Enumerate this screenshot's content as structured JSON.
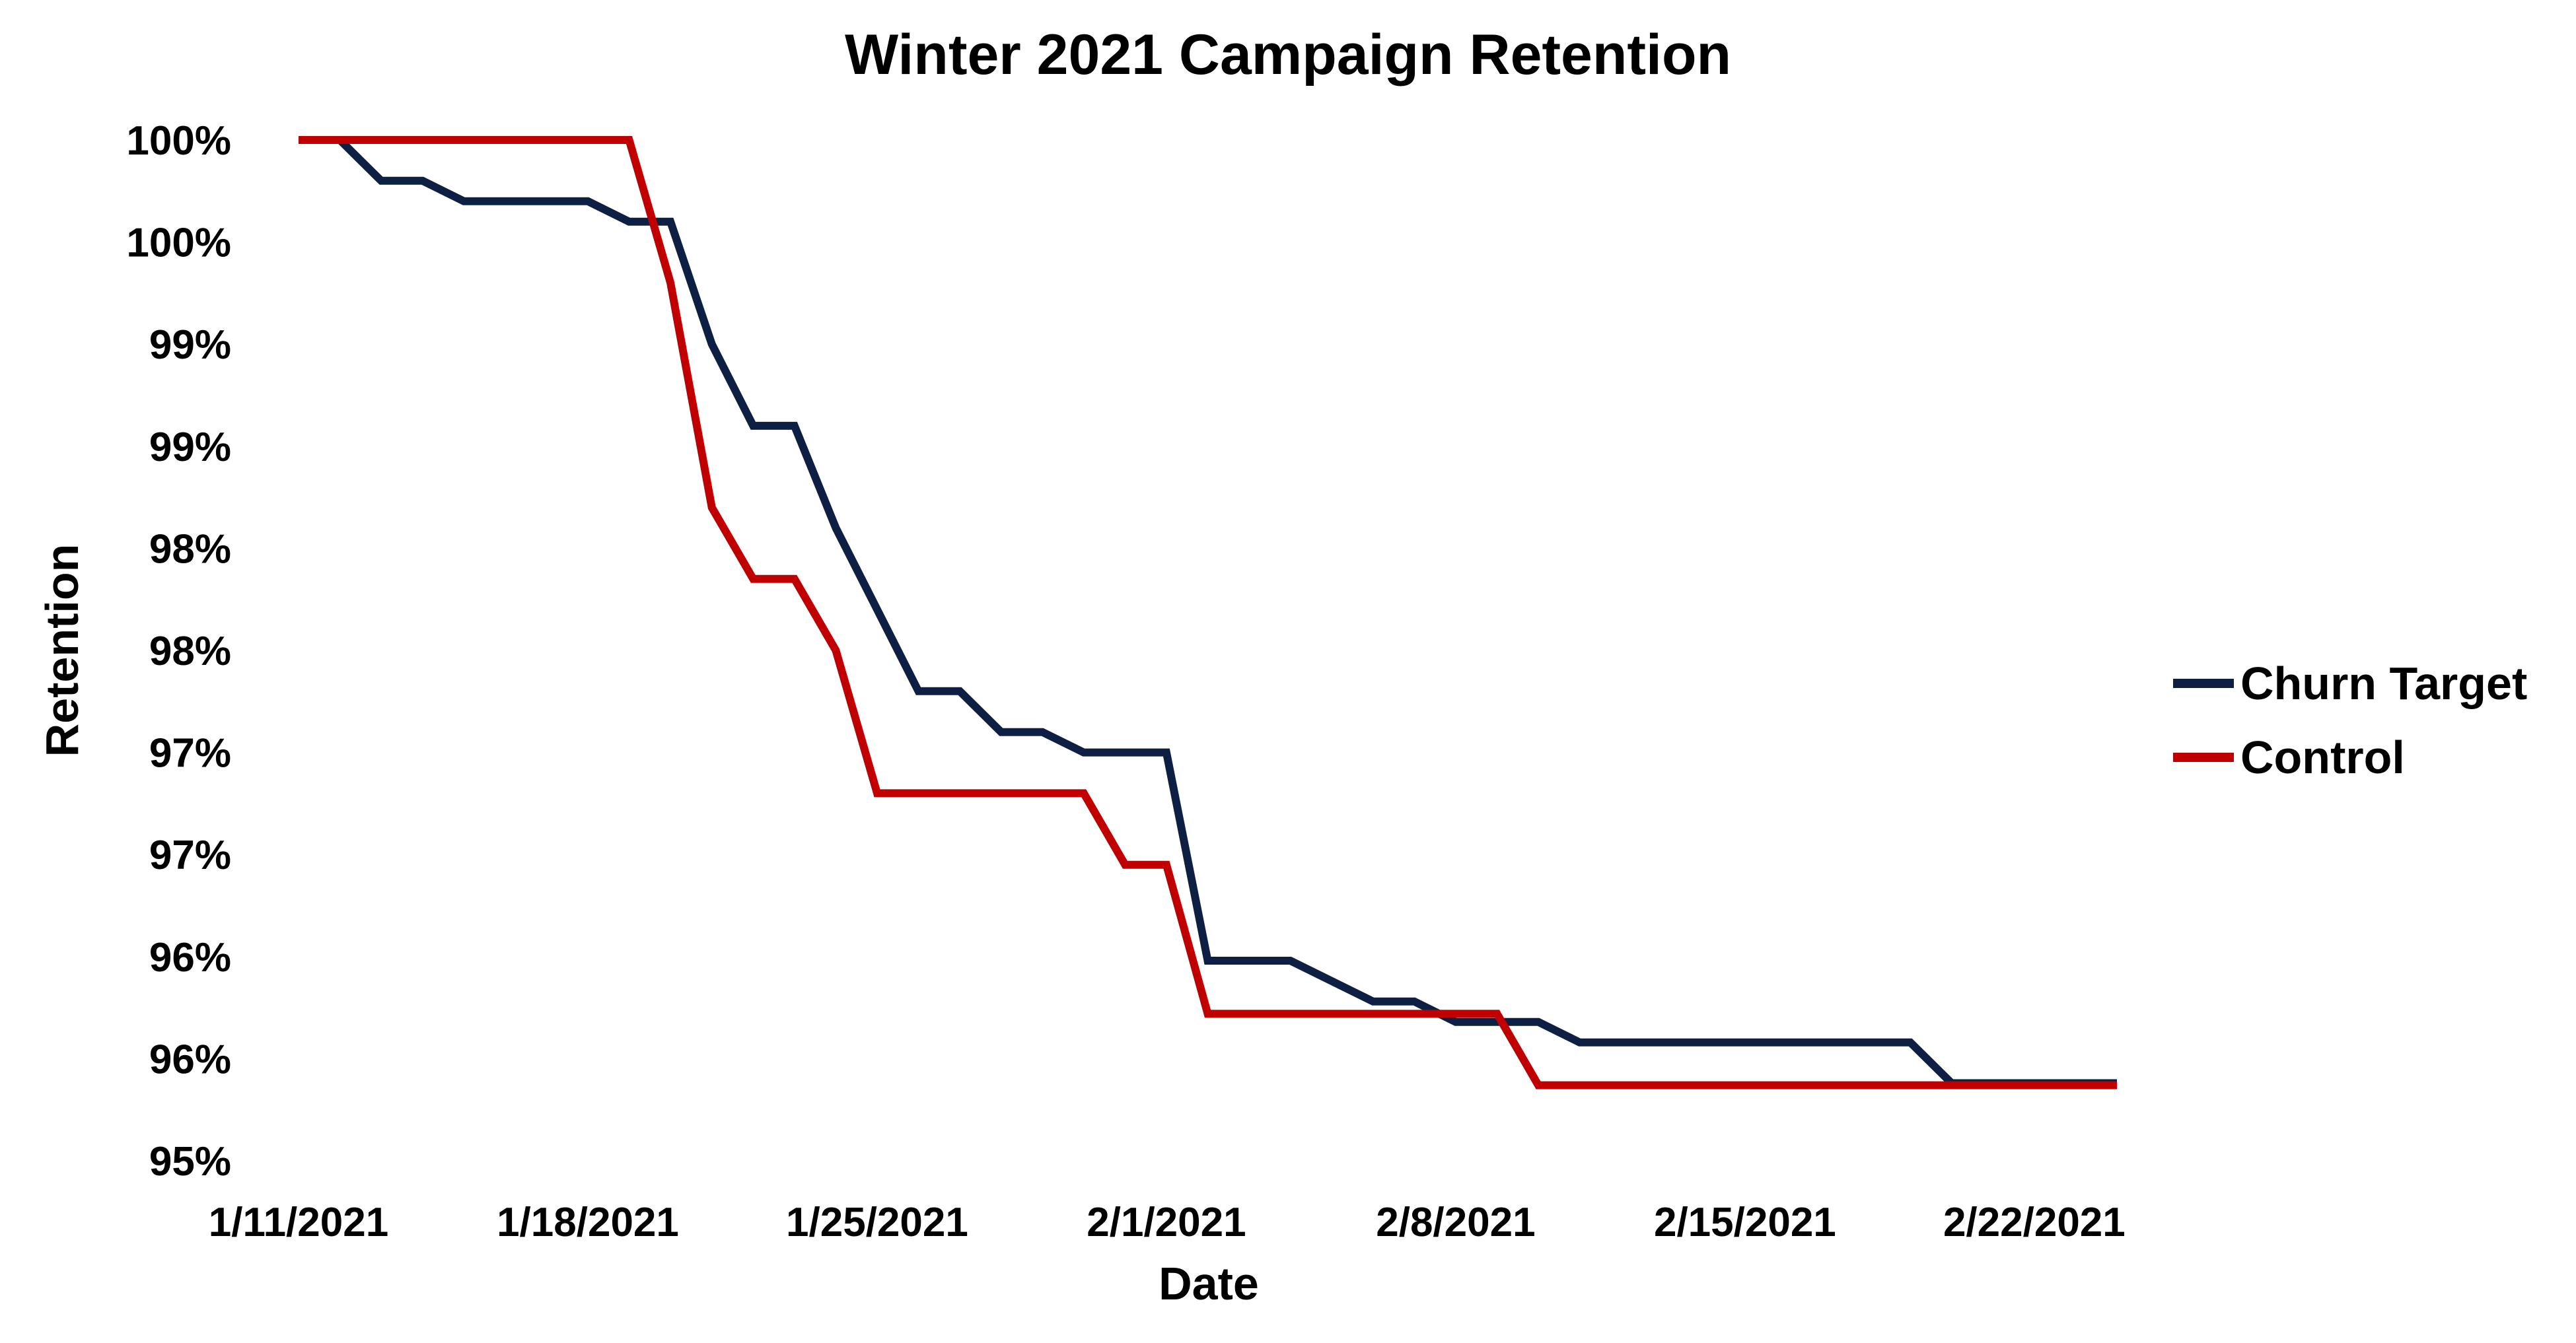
{
  "chart_data": {
    "type": "line",
    "title": "Winter 2021 Campaign Retention",
    "xlabel": "Date",
    "ylabel": "Retention",
    "x_ticks": [
      "1/11/2021",
      "1/18/2021",
      "1/25/2021",
      "2/1/2021",
      "2/8/2021",
      "2/15/2021",
      "2/22/2021"
    ],
    "y_ticks": [
      "100%",
      "100%",
      "99%",
      "99%",
      "98%",
      "98%",
      "97%",
      "97%",
      "96%",
      "96%",
      "95%"
    ],
    "ylim": [
      95.0,
      100.0
    ],
    "xlim": [
      "1/11/2021",
      "2/24/2021"
    ],
    "grid": false,
    "legend_position": "right",
    "series": [
      {
        "name": "Churn Target",
        "color": "#0e1f44",
        "x": [
          "1/11/2021",
          "1/12/2021",
          "1/13/2021",
          "1/14/2021",
          "1/15/2021",
          "1/16/2021",
          "1/17/2021",
          "1/18/2021",
          "1/19/2021",
          "1/20/2021",
          "1/21/2021",
          "1/22/2021",
          "1/23/2021",
          "1/24/2021",
          "1/25/2021",
          "1/26/2021",
          "1/27/2021",
          "1/28/2021",
          "1/29/2021",
          "1/30/2021",
          "1/31/2021",
          "2/1/2021",
          "2/2/2021",
          "2/3/2021",
          "2/4/2021",
          "2/5/2021",
          "2/6/2021",
          "2/7/2021",
          "2/8/2021",
          "2/9/2021",
          "2/10/2021",
          "2/11/2021",
          "2/19/2021",
          "2/20/2021",
          "2/24/2021"
        ],
        "values": [
          100.0,
          100.0,
          99.8,
          99.8,
          99.7,
          99.7,
          99.7,
          99.7,
          99.6,
          99.6,
          99.0,
          98.6,
          98.6,
          98.1,
          97.7,
          97.3,
          97.3,
          97.1,
          97.1,
          97.0,
          97.0,
          97.0,
          95.98,
          95.98,
          95.98,
          95.88,
          95.78,
          95.78,
          95.68,
          95.68,
          95.68,
          95.58,
          95.58,
          95.38,
          95.38
        ]
      },
      {
        "name": "Control",
        "color": "#c00000",
        "x": [
          "1/11/2021",
          "1/19/2021",
          "1/20/2021",
          "1/21/2021",
          "1/22/2021",
          "1/23/2021",
          "1/24/2021",
          "1/25/2021",
          "1/26/2021",
          "1/27/2021",
          "1/28/2021",
          "1/29/2021",
          "1/30/2021",
          "1/31/2021",
          "2/1/2021",
          "2/2/2021",
          "2/3/2021",
          "2/8/2021",
          "2/9/2021",
          "2/10/2021",
          "2/24/2021"
        ],
        "values": [
          100.0,
          100.0,
          99.3,
          98.2,
          97.85,
          97.85,
          97.5,
          96.8,
          96.8,
          96.8,
          96.8,
          96.8,
          96.8,
          96.45,
          96.45,
          95.72,
          95.72,
          95.72,
          95.72,
          95.37,
          95.37
        ]
      }
    ]
  }
}
